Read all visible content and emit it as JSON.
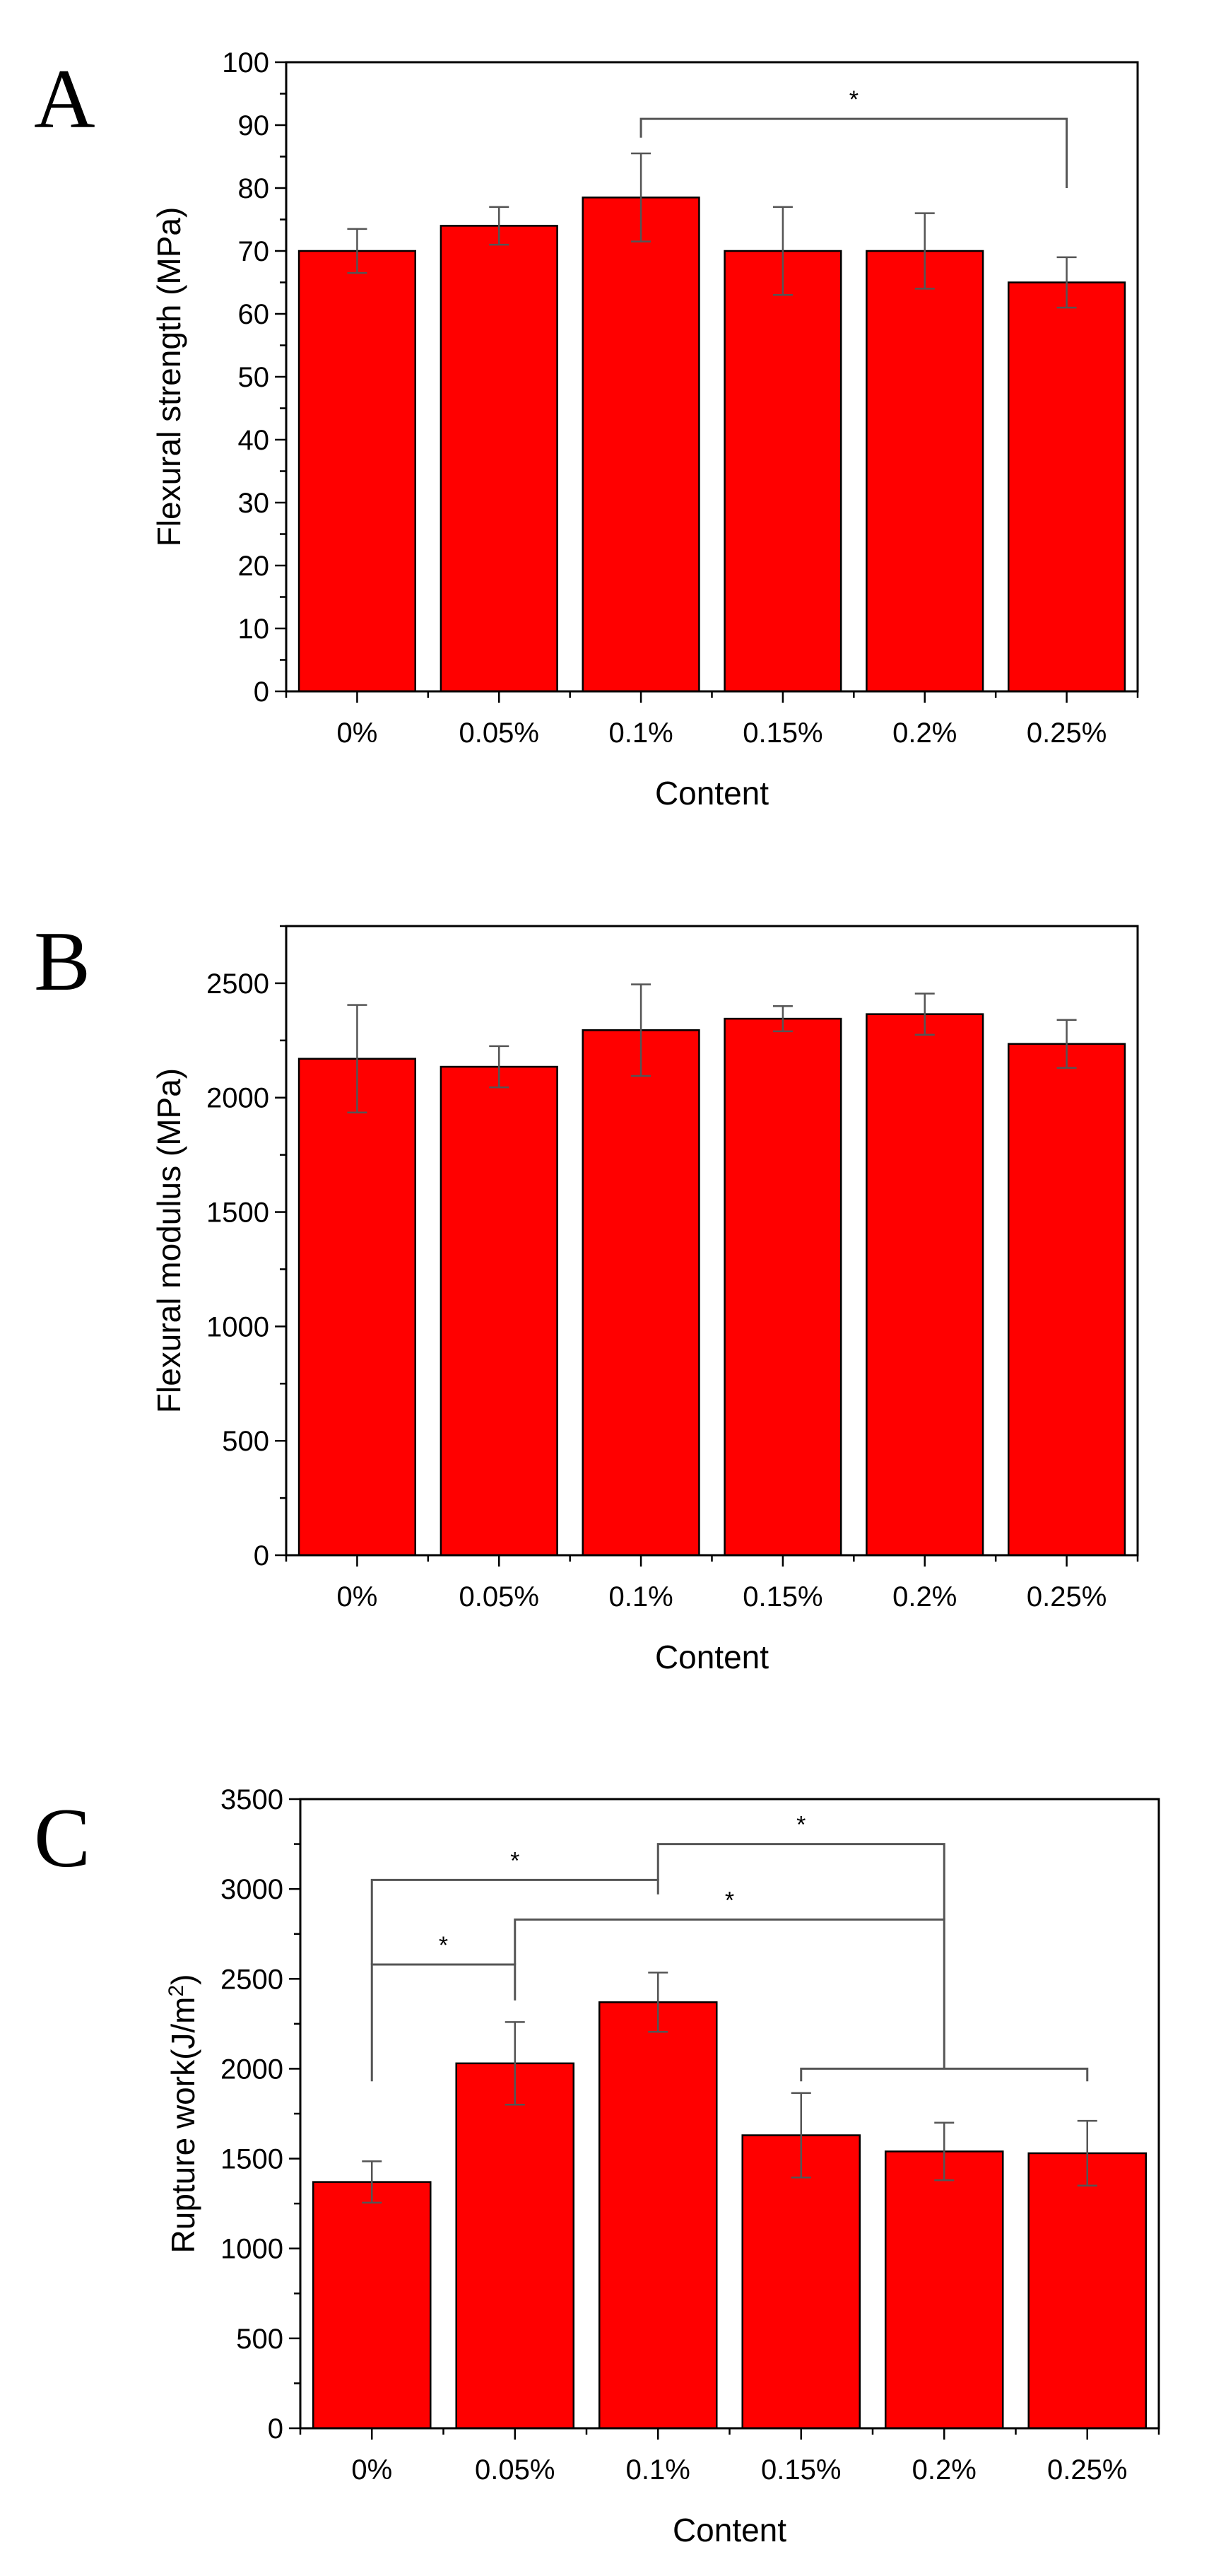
{
  "colors": {
    "bar": "#ff0000",
    "bar_edge": "#000000",
    "error": "#555555",
    "bracket": "#555555"
  },
  "chart_data": [
    {
      "panel_label": "A",
      "type": "bar",
      "categories": [
        "0%",
        "0.05%",
        "0.1%",
        "0.15%",
        "0.2%",
        "0.25%"
      ],
      "values": [
        70,
        74,
        78.5,
        70,
        70,
        65
      ],
      "errors": [
        3.5,
        3,
        7,
        7,
        6,
        4
      ],
      "xlabel": "Content",
      "ylabel": "Flexural strength (MPa)",
      "ylim": [
        0,
        100
      ],
      "yticks": [
        0,
        10,
        20,
        30,
        40,
        50,
        60,
        70,
        80,
        90,
        100
      ],
      "ytick_labels": [
        "0",
        "10",
        "20",
        "30",
        "40",
        "50",
        "60",
        "70",
        "80",
        "90",
        "100"
      ],
      "minor_y_step": 5,
      "grid": false,
      "significance": [
        {
          "from": 2,
          "to": 5,
          "top": 91,
          "from_end": 88,
          "to_end": 80,
          "label": "*"
        }
      ]
    },
    {
      "panel_label": "B",
      "type": "bar",
      "categories": [
        "0%",
        "0.05%",
        "0.1%",
        "0.15%",
        "0.2%",
        "0.25%"
      ],
      "values": [
        2170,
        2135,
        2295,
        2345,
        2365,
        2235
      ],
      "errors": [
        235,
        90,
        200,
        55,
        90,
        105
      ],
      "xlabel": "Content",
      "ylabel": "Flexural modulus (MPa)",
      "ylim": [
        0,
        2750
      ],
      "yticks": [
        0,
        500,
        1000,
        1500,
        2000,
        2500
      ],
      "ytick_labels": [
        "0",
        "500",
        "1000",
        "1500",
        "2000",
        "2500"
      ],
      "minor_y_step": 250,
      "grid": false,
      "significance": []
    },
    {
      "panel_label": "C",
      "type": "bar",
      "categories": [
        "0%",
        "0.05%",
        "0.1%",
        "0.15%",
        "0.2%",
        "0.25%"
      ],
      "values": [
        1370,
        2030,
        2370,
        1630,
        1540,
        1530
      ],
      "errors": [
        115,
        230,
        165,
        235,
        160,
        180
      ],
      "xlabel": "Content",
      "ylabel": "Rupture work(J/m",
      "ylabel_sup": "2",
      "ylabel_end": ")",
      "ylim": [
        0,
        3500
      ],
      "yticks": [
        0,
        500,
        1000,
        1500,
        2000,
        2500,
        3000,
        3500
      ],
      "ytick_labels": [
        "0",
        "500",
        "1000",
        "1500",
        "2000",
        "2500",
        "3000",
        "3500"
      ],
      "minor_y_step": 250,
      "grid": false,
      "significance": [
        {
          "from": 0,
          "to": 1,
          "top": 2580,
          "from_end": 1930,
          "to_end": 2380,
          "label": "*"
        },
        {
          "from": 0,
          "to": 2,
          "top": 3050,
          "from_end": 2580,
          "to_end": 2970,
          "label": "*"
        },
        {
          "from": 1,
          "to": 4,
          "top": 2830,
          "from_end": 2580,
          "to_end": 2000,
          "label": "*"
        },
        {
          "from": 2,
          "to": 4,
          "top": 3250,
          "from_end": 3050,
          "to_end": 2830,
          "label": "*"
        },
        {
          "from": 3,
          "to": 5,
          "top": 2000,
          "from_end": 1930,
          "to_end": 1930,
          "label": "*",
          "star_hidden": true
        }
      ]
    }
  ]
}
